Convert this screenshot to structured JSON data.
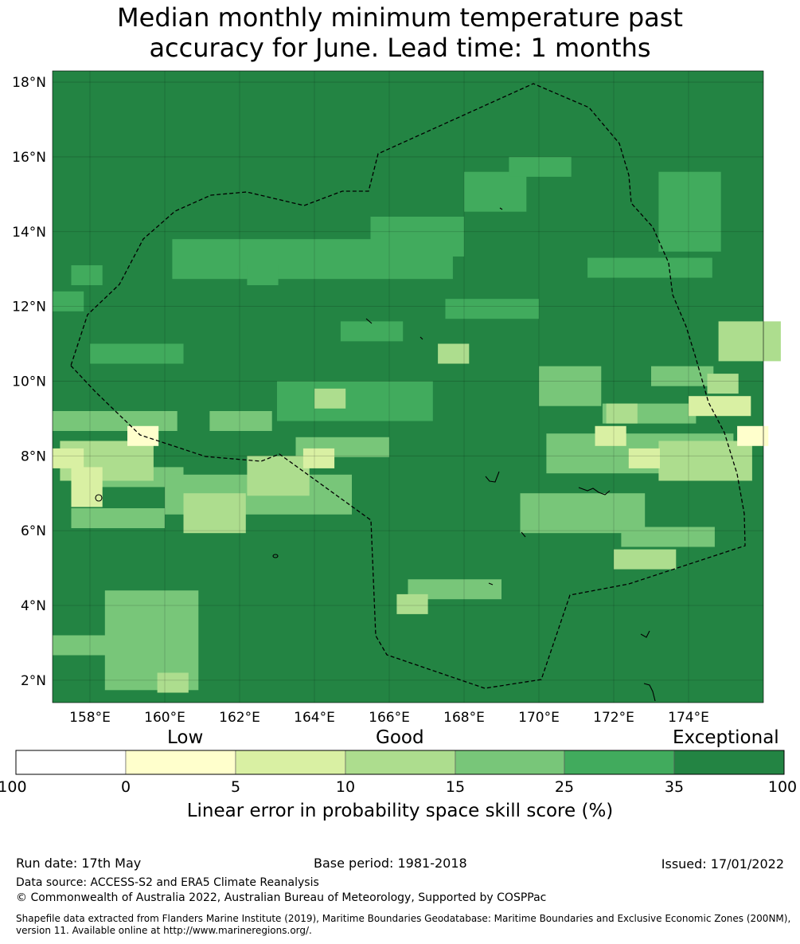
{
  "title": {
    "line1": "Median monthly minimum temperature past",
    "line2": "accuracy for June. Lead time: 1 months"
  },
  "map": {
    "lat_ticks": [
      "18°N",
      "16°N",
      "14°N",
      "12°N",
      "10°N",
      "8°N",
      "6°N",
      "4°N",
      "2°N"
    ],
    "lon_ticks": [
      "158°E",
      "160°E",
      "162°E",
      "164°E",
      "166°E",
      "168°E",
      "170°E",
      "172°E",
      "174°E"
    ],
    "lon_range": [
      157,
      176
    ],
    "lat_range": [
      1.4,
      18.3
    ],
    "grid": true,
    "boundary_style": "dashed"
  },
  "colorbar": {
    "category_labels": [
      "Low",
      "Good",
      "Exceptional"
    ],
    "ticks": [
      "-100",
      "0",
      "5",
      "10",
      "15",
      "25",
      "35",
      "100"
    ],
    "colors": [
      "#ffffff",
      "#ffffcc",
      "#d9f0a3",
      "#addd8e",
      "#78c679",
      "#41ab5d",
      "#238443"
    ],
    "title": "Linear error in probability space skill score (%)"
  },
  "footer": {
    "run_date": "Run date: 17th May",
    "base_period": "Base period: 1981-2018",
    "issued": "Issued: 17/01/2022",
    "data_source": "Data source: ACCESS-S2 and ERA5 Climate Reanalysis",
    "copyright": "© Commonwealth of Australia 2022, Australian Bureau of Meteorology, Supported by COSPPac",
    "shapefile": "Shapefile data extracted from Flanders Marine Institute (2019), Maritime Boundaries Geodatabase: Maritime Boundaries and Exclusive Economic Zones (200NM), version 11. Available online at http://www.marineregions.org/."
  }
}
